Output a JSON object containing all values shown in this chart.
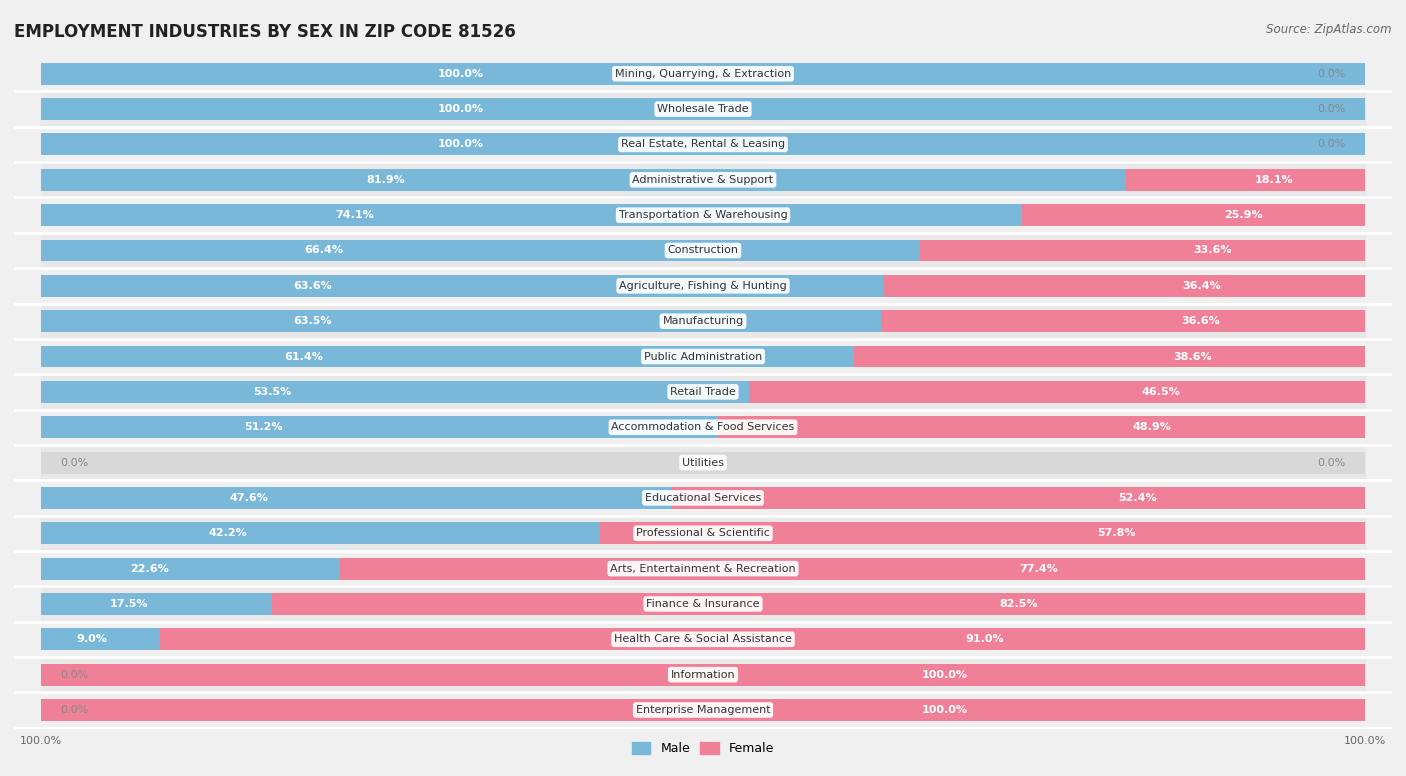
{
  "title": "EMPLOYMENT INDUSTRIES BY SEX IN ZIP CODE 81526",
  "source": "Source: ZipAtlas.com",
  "categories": [
    "Mining, Quarrying, & Extraction",
    "Wholesale Trade",
    "Real Estate, Rental & Leasing",
    "Administrative & Support",
    "Transportation & Warehousing",
    "Construction",
    "Agriculture, Fishing & Hunting",
    "Manufacturing",
    "Public Administration",
    "Retail Trade",
    "Accommodation & Food Services",
    "Utilities",
    "Educational Services",
    "Professional & Scientific",
    "Arts, Entertainment & Recreation",
    "Finance & Insurance",
    "Health Care & Social Assistance",
    "Information",
    "Enterprise Management"
  ],
  "male_pct": [
    100.0,
    100.0,
    100.0,
    81.9,
    74.1,
    66.4,
    63.6,
    63.5,
    61.4,
    53.5,
    51.2,
    0.0,
    47.6,
    42.2,
    22.6,
    17.5,
    9.0,
    0.0,
    0.0
  ],
  "female_pct": [
    0.0,
    0.0,
    0.0,
    18.1,
    25.9,
    33.6,
    36.4,
    36.6,
    38.6,
    46.5,
    48.9,
    0.0,
    52.4,
    57.8,
    77.4,
    82.5,
    91.0,
    100.0,
    100.0
  ],
  "male_color": "#7ab8d9",
  "female_color": "#f08098",
  "bg_color": "#f0f0f0",
  "row_bg_even": "#f0f0f0",
  "row_bg_odd": "#e8e8e8",
  "bar_bg_color": "#d8d8d8",
  "label_bg_color": "#ffffff",
  "title_fontsize": 12,
  "source_fontsize": 8.5,
  "cat_label_fontsize": 8,
  "bar_label_fontsize": 8,
  "legend_fontsize": 9
}
